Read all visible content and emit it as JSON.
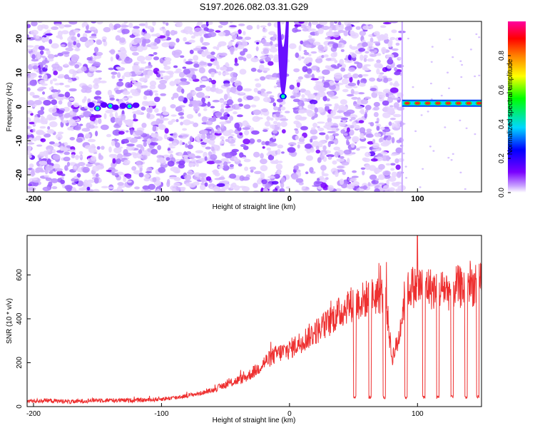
{
  "chart_data": [
    {
      "type": "heatmap",
      "title": "S197.2026.082.03.31.G29",
      "xlabel": "Height of straight line (km)",
      "ylabel": "Frequency (Hz)",
      "xlim": [
        -205,
        150
      ],
      "ylim": [
        -25,
        25
      ],
      "xticks": [
        -200,
        -100,
        0,
        100
      ],
      "xtick_labels": [
        "-200",
        "-100",
        "0",
        "100"
      ],
      "yticks": [
        -20,
        -10,
        0,
        10,
        20
      ],
      "ytick_labels": [
        "-20",
        "-10",
        "0",
        "10",
        "20"
      ],
      "colorbar": {
        "label": "Normalized spectral amplitude",
        "range": [
          0,
          1
        ],
        "ticks": [
          0.0,
          0.2,
          0.4,
          0.6,
          0.8
        ],
        "tick_labels": [
          "0.0",
          "0.2",
          "0.4",
          "0.6",
          "0.8"
        ],
        "colormap": [
          "#ffffff",
          "#7a00ff",
          "#0000ff",
          "#00d8ff",
          "#00ff00",
          "#ffff00",
          "#ff8000",
          "#ff0000",
          "#ff00a0"
        ]
      },
      "features": [
        {
          "name": "low-frequency blob cluster",
          "x": [
            -150,
            -120
          ],
          "frequency": 0
        },
        {
          "name": "V-shaped resonance peak",
          "x": -5,
          "frequency": 3
        },
        {
          "name": "horizontal tone with red peaks",
          "x": [
            88,
            150
          ],
          "frequency": 1
        }
      ]
    },
    {
      "type": "line",
      "xlabel": "Height of straight line (km)",
      "ylabel": "SNR (10 * v/v)",
      "xlim": [
        -205,
        150
      ],
      "ylim": [
        0,
        780
      ],
      "xticks": [
        -200,
        -100,
        0,
        100
      ],
      "xtick_labels": [
        "-200",
        "-100",
        "0",
        "100"
      ],
      "yticks": [
        0,
        200,
        400,
        600
      ],
      "ytick_labels": [
        "0",
        "200",
        "400",
        "600"
      ],
      "color": "#ee3030",
      "series": [
        {
          "name": "SNR",
          "x": [
            -205,
            -190,
            -170,
            -150,
            -130,
            -110,
            -90,
            -70,
            -60,
            -50,
            -40,
            -35,
            -30,
            -25,
            -20,
            -15,
            -10,
            -5,
            0,
            5,
            10,
            15,
            20,
            25,
            30,
            35,
            40,
            45,
            50,
            55,
            60,
            65,
            70,
            75,
            80,
            85,
            90,
            95,
            100,
            105,
            110,
            115,
            120,
            125,
            130,
            135,
            140,
            145,
            150
          ],
          "values": [
            25,
            28,
            22,
            30,
            28,
            30,
            40,
            60,
            75,
            100,
            120,
            130,
            150,
            170,
            200,
            220,
            240,
            250,
            260,
            280,
            300,
            320,
            340,
            360,
            380,
            410,
            430,
            460,
            470,
            480,
            490,
            500,
            510,
            500,
            220,
            300,
            500,
            550,
            540,
            560,
            540,
            520,
            540,
            530,
            550,
            540,
            560,
            550,
            560
          ]
        }
      ],
      "dropouts": [
        {
          "x": [
            50,
            52
          ],
          "value": 40
        },
        {
          "x": [
            62,
            64
          ],
          "value": 40
        },
        {
          "x": [
            73,
            75
          ],
          "value": 40
        },
        {
          "x": [
            90,
            92
          ],
          "value": 40
        },
        {
          "x": [
            104,
            106
          ],
          "value": 40
        },
        {
          "x": [
            115,
            117
          ],
          "value": 40
        },
        {
          "x": [
            126,
            128
          ],
          "value": 40
        },
        {
          "x": [
            137,
            139
          ],
          "value": 40
        },
        {
          "x": [
            146,
            148
          ],
          "value": 40
        }
      ],
      "spike": {
        "x": 100,
        "value": 780
      }
    }
  ]
}
